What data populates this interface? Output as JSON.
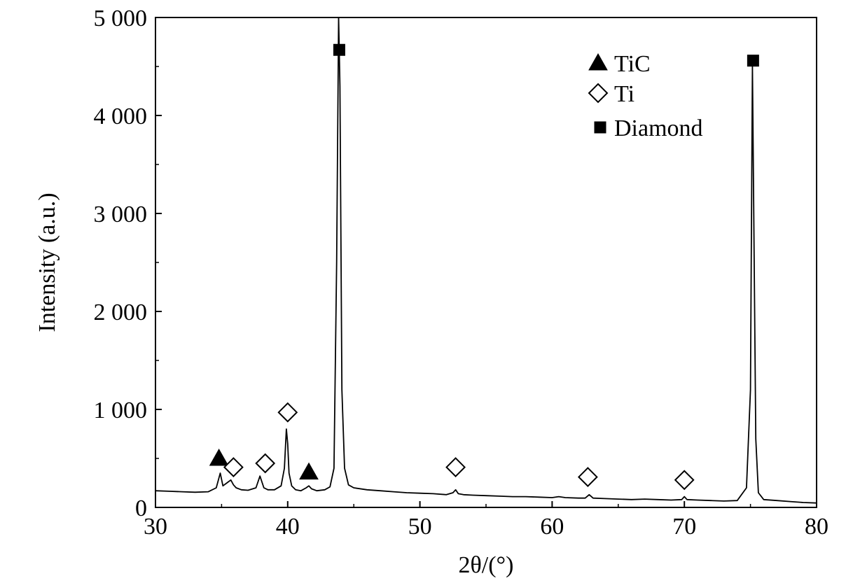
{
  "chart_data": {
    "type": "line",
    "title": "",
    "xlabel": "2θ/(°)",
    "ylabel": "Intensity (a.u.)",
    "xlim": [
      30,
      80
    ],
    "ylim": [
      0,
      5000
    ],
    "x_ticks": [
      30,
      40,
      50,
      60,
      70,
      80
    ],
    "x_tick_labels": [
      "30",
      "40",
      "50",
      "60",
      "70",
      "80"
    ],
    "y_ticks": [
      0,
      1000,
      2000,
      3000,
      4000,
      5000
    ],
    "y_tick_labels": [
      "0",
      "1 000",
      "2 000",
      "3 000",
      "4 000",
      "5 000"
    ],
    "grid": false,
    "legend_position": "top-right",
    "line_color": "#000000",
    "series": [
      {
        "x": [
          30,
          31,
          32,
          33,
          34,
          34.6,
          34.9,
          35.1,
          35.4,
          35.7,
          35.9,
          36.1,
          36.5,
          37,
          37.6,
          37.9,
          38.05,
          38.2,
          38.5,
          39,
          39.5,
          39.75,
          39.9,
          40.0,
          40.1,
          40.3,
          40.6,
          41,
          41.4,
          41.6,
          41.8,
          42.2,
          42.8,
          43.2,
          43.5,
          43.7,
          43.85,
          43.95,
          44.1,
          44.3,
          44.6,
          45,
          46,
          47,
          48,
          49,
          50,
          51,
          52,
          52.5,
          52.7,
          52.9,
          53.3,
          54,
          55,
          56,
          57,
          58,
          59,
          60,
          60.5,
          61,
          62,
          62.5,
          62.8,
          63.1,
          64,
          65,
          66,
          67,
          68,
          69,
          69.8,
          70.0,
          70.2,
          71,
          72,
          73,
          74,
          74.7,
          75.0,
          75.15,
          75.25,
          75.4,
          75.6,
          76,
          77,
          78,
          79,
          80
        ],
        "y": [
          170,
          165,
          160,
          155,
          160,
          200,
          350,
          220,
          250,
          280,
          230,
          200,
          180,
          175,
          200,
          320,
          260,
          200,
          180,
          180,
          220,
          400,
          800,
          650,
          350,
          220,
          180,
          170,
          200,
          220,
          190,
          170,
          180,
          210,
          400,
          2500,
          5000,
          4300,
          1200,
          400,
          230,
          200,
          180,
          170,
          160,
          150,
          145,
          140,
          130,
          150,
          180,
          140,
          130,
          125,
          120,
          115,
          110,
          110,
          105,
          100,
          110,
          100,
          95,
          95,
          130,
          95,
          90,
          85,
          80,
          85,
          80,
          75,
          80,
          110,
          80,
          75,
          70,
          65,
          70,
          200,
          1200,
          4500,
          3000,
          700,
          150,
          80,
          70,
          60,
          50,
          45
        ]
      }
    ],
    "legend": [
      {
        "label": "TiC",
        "marker": "filled-triangle"
      },
      {
        "label": "Ti",
        "marker": "open-diamond"
      },
      {
        "label": "Diamond",
        "marker": "filled-square"
      }
    ],
    "annotations": [
      {
        "phase": "TiC",
        "marker": "filled-triangle",
        "x": 34.8,
        "y": 500
      },
      {
        "phase": "Ti",
        "marker": "open-diamond",
        "x": 35.9,
        "y": 410
      },
      {
        "phase": "Ti",
        "marker": "open-diamond",
        "x": 38.3,
        "y": 450
      },
      {
        "phase": "Ti",
        "marker": "open-diamond",
        "x": 40.0,
        "y": 970
      },
      {
        "phase": "TiC",
        "marker": "filled-triangle",
        "x": 41.6,
        "y": 360
      },
      {
        "phase": "Diamond",
        "marker": "filled-square",
        "x": 43.9,
        "y": 4670
      },
      {
        "phase": "Ti",
        "marker": "open-diamond",
        "x": 52.7,
        "y": 410
      },
      {
        "phase": "Ti",
        "marker": "open-diamond",
        "x": 62.7,
        "y": 310
      },
      {
        "phase": "Ti",
        "marker": "open-diamond",
        "x": 70.0,
        "y": 280
      },
      {
        "phase": "Diamond",
        "marker": "filled-square",
        "x": 75.2,
        "y": 4560
      }
    ]
  }
}
